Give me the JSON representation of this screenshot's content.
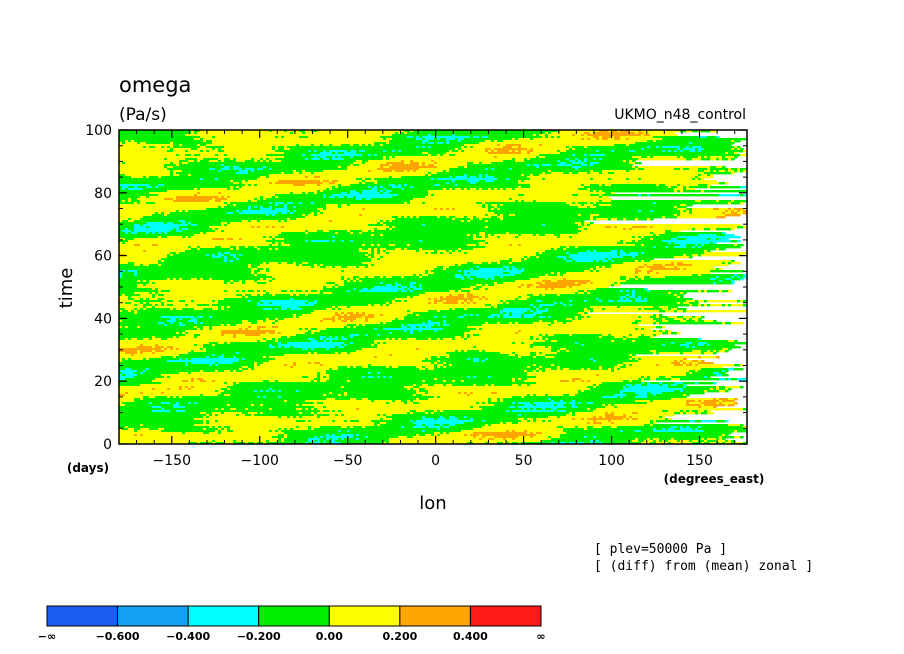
{
  "chart_data": {
    "type": "heatmap",
    "title": "omega",
    "units": "(Pa/s)",
    "model": "UKMO_n48_control",
    "xlabel": "lon",
    "xunits": "(degrees_east)",
    "ylabel": "time",
    "yunits": "(days)",
    "xlim": [
      -180,
      177
    ],
    "ylim": [
      0,
      100
    ],
    "xticks": [
      -150,
      -100,
      -50,
      0,
      50,
      100,
      150
    ],
    "xtick_labels": [
      "−150",
      "−100",
      "−50",
      "0",
      "50",
      "100",
      "150"
    ],
    "yticks": [
      0,
      20,
      40,
      60,
      80,
      100
    ],
    "ytick_labels": [
      "0",
      "20",
      "40",
      "60",
      "80",
      "100"
    ],
    "annotations": [
      "[ plev=50000 Pa ]",
      "[ (diff) from (mean) zonal ]"
    ],
    "colorbar": {
      "levels": [
        -0.6,
        -0.4,
        -0.2,
        0.0,
        0.2,
        0.4
      ],
      "labels": [
        "−∞",
        "−0.600",
        "−0.400",
        "−0.200",
        "0.00",
        "0.200",
        "0.400",
        "∞"
      ],
      "colors": [
        "#1d5cf0",
        "#12a0f0",
        "#00ffff",
        "#00f000",
        "#ffff00",
        "#ffa500",
        "#ff1a1a"
      ]
    },
    "pattern": {
      "description_free": true,
      "eastward_speed_deg_per_day": 12,
      "wave_number": 2,
      "dominant_classes": [
        "0.00",
        "−0.200"
      ]
    }
  }
}
